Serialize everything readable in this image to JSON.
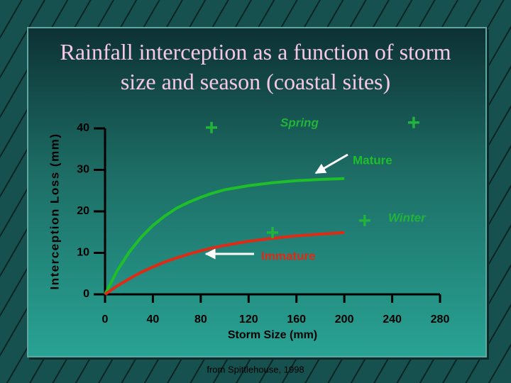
{
  "chart_data": {
    "type": "line",
    "title": "Rainfall interception as a function of storm size and season (coastal sites)",
    "source": "from Spittlehouse, 1998",
    "xlabel": "Storm Size (mm)",
    "ylabel": "Interception Loss (mm)",
    "x": [
      0,
      10,
      20,
      30,
      40,
      50,
      60,
      70,
      80,
      90,
      100,
      120,
      140,
      160,
      180,
      200
    ],
    "series": [
      {
        "name": "Mature",
        "color": "#1fbf2a",
        "values": [
          0,
          5.6,
          10.1,
          13.7,
          16.6,
          18.9,
          20.8,
          22.2,
          23.4,
          24.4,
          25.2,
          26.2,
          26.9,
          27.4,
          27.7,
          27.9
        ]
      },
      {
        "name": "Immature",
        "color": "#e02a14",
        "values": [
          0,
          2.0,
          3.7,
          5.3,
          6.6,
          7.8,
          8.8,
          9.7,
          10.5,
          11.2,
          11.8,
          12.8,
          13.5,
          14.1,
          14.5,
          14.9
        ]
      }
    ],
    "markers": [
      {
        "name": "Spring",
        "color": "#22b33a",
        "x": [
          89,
          258
        ],
        "values": [
          40.2,
          41.4
        ]
      },
      {
        "name": "Winter",
        "color": "#22b33a",
        "x": [
          140,
          217
        ],
        "values": [
          14.9,
          17.8
        ]
      }
    ],
    "xlim": [
      0,
      280
    ],
    "ylim": [
      0,
      40
    ],
    "xticks": [
      0,
      40,
      80,
      120,
      160,
      200,
      240,
      280
    ],
    "yticks": [
      0,
      10,
      20,
      30,
      40
    ]
  }
}
